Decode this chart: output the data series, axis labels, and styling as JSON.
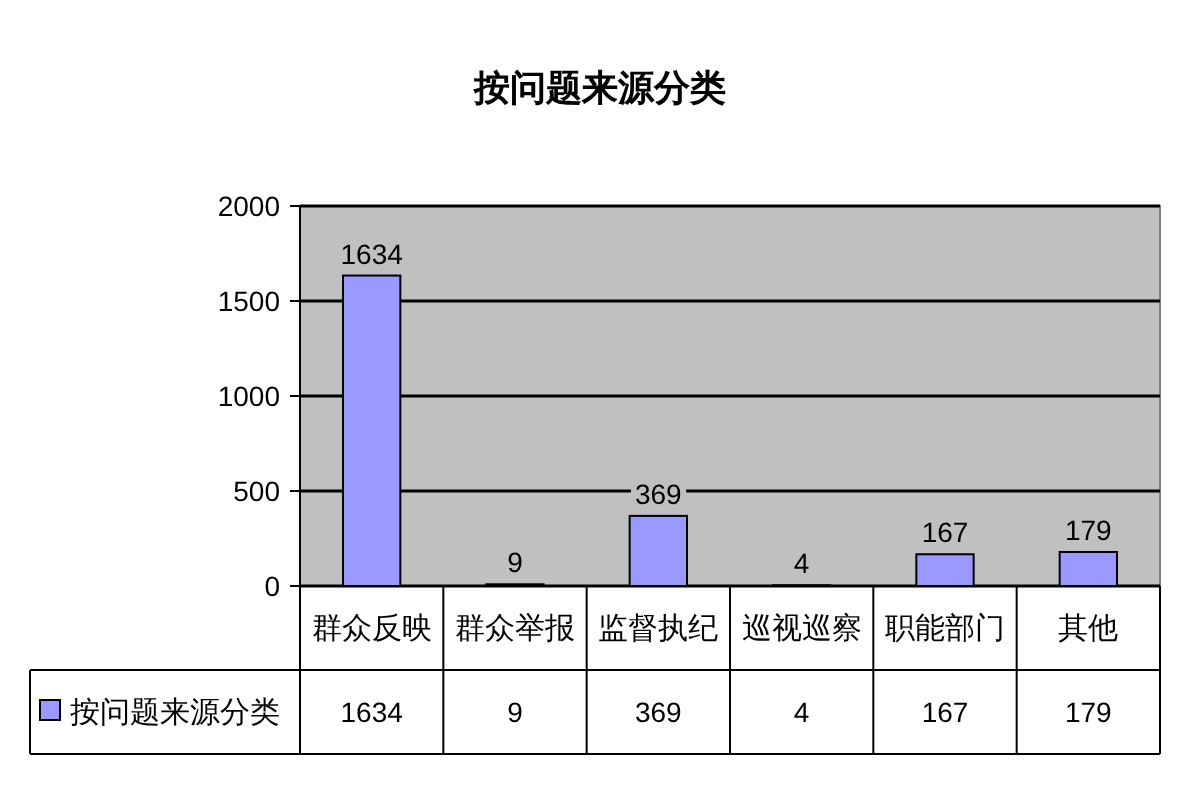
{
  "chart_data": {
    "type": "bar",
    "title": "按问题来源分类",
    "categories": [
      "群众反映",
      "群众举报",
      "监督执纪",
      "巡视巡察",
      "职能部门",
      "其他"
    ],
    "series": [
      {
        "name": "按问题来源分类",
        "color": "#9999ff",
        "values": [
          1634,
          9,
          369,
          4,
          167,
          179
        ],
        "value_labels": [
          "1634",
          "9",
          "369",
          "4",
          "167",
          "179"
        ]
      }
    ],
    "ylim": [
      0,
      2000
    ],
    "yticks": [
      0,
      500,
      1000,
      1500,
      2000
    ],
    "grid": "y",
    "data_labels": true,
    "legend": "bottom"
  }
}
